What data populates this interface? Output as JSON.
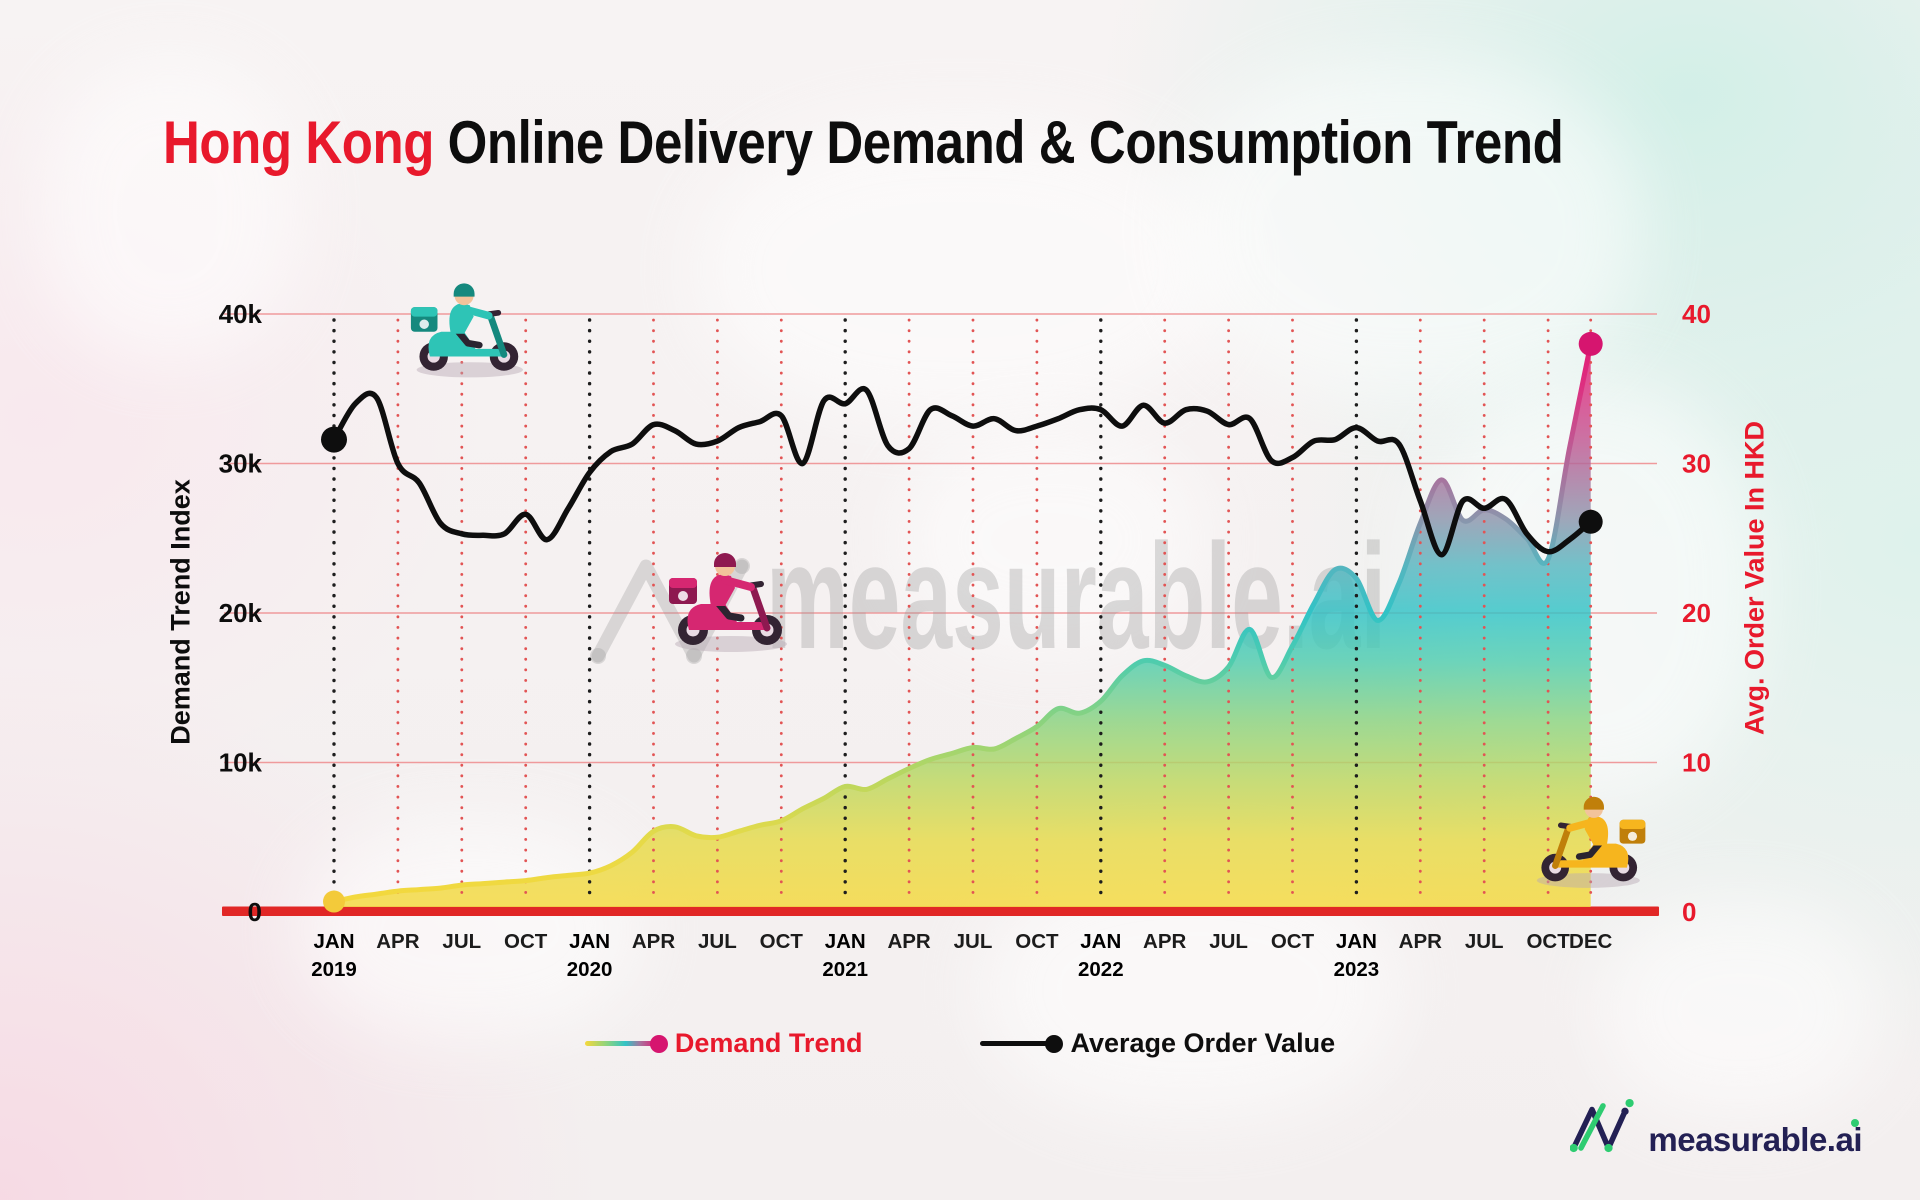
{
  "title": {
    "highlight": "Hong Kong",
    "rest": "Online Delivery Demand & Consumption Trend"
  },
  "watermark": {
    "text": "measurable.ai"
  },
  "brand": {
    "logo_text": "measurable.ai"
  },
  "colors": {
    "accent_red": "#e8192c",
    "baseline_red": "#e12726",
    "grid_red": "#ef9a9c",
    "dotted_red": "#e25454",
    "dotted_black": "#1d1d1d",
    "aov_line": "#0e0e0e",
    "demand_start_dot": "#f3ca3a",
    "demand_end_dot": "#d6156f",
    "brand_navy": "#232054",
    "brand_green": "#2ecc71",
    "watermark_gray": "#9b9b9b"
  },
  "chart_data": {
    "type": "line",
    "title": "Hong Kong Online Delivery Demand & Consumption Trend",
    "x_unit": "month",
    "x_start": "JAN 2019",
    "x_end": "DEC 2023",
    "legend_position": "bottom-center",
    "x_ticks": [
      {
        "m": 0,
        "label": "JAN",
        "year": "2019"
      },
      {
        "m": 3,
        "label": "APR"
      },
      {
        "m": 6,
        "label": "JUL"
      },
      {
        "m": 9,
        "label": "OCT"
      },
      {
        "m": 12,
        "label": "JAN",
        "year": "2020"
      },
      {
        "m": 15,
        "label": "APR"
      },
      {
        "m": 18,
        "label": "JUL"
      },
      {
        "m": 21,
        "label": "OCT"
      },
      {
        "m": 24,
        "label": "JAN",
        "year": "2021"
      },
      {
        "m": 27,
        "label": "APR"
      },
      {
        "m": 30,
        "label": "JUL"
      },
      {
        "m": 33,
        "label": "OCT"
      },
      {
        "m": 36,
        "label": "JAN",
        "year": "2022"
      },
      {
        "m": 39,
        "label": "APR"
      },
      {
        "m": 42,
        "label": "JUL"
      },
      {
        "m": 45,
        "label": "OCT"
      },
      {
        "m": 48,
        "label": "JAN",
        "year": "2023"
      },
      {
        "m": 51,
        "label": "APR"
      },
      {
        "m": 54,
        "label": "JUL"
      },
      {
        "m": 57,
        "label": "OCT"
      },
      {
        "m": 59,
        "label": "DEC"
      }
    ],
    "y_left": {
      "label": "Demand Trend Index",
      "min": 0,
      "max": 40000,
      "ticks": [
        {
          "v": 0,
          "label": "0"
        },
        {
          "v": 10000,
          "label": "10k"
        },
        {
          "v": 20000,
          "label": "20k"
        },
        {
          "v": 30000,
          "label": "30k"
        },
        {
          "v": 40000,
          "label": "40k"
        }
      ]
    },
    "y_right": {
      "label": "Avg. Order Value In HKD",
      "min": 0,
      "max": 40,
      "ticks": [
        {
          "v": 0,
          "label": "0"
        },
        {
          "v": 10,
          "label": "10"
        },
        {
          "v": 20,
          "label": "20"
        },
        {
          "v": 30,
          "label": "30"
        },
        {
          "v": 40,
          "label": "40"
        }
      ]
    },
    "grid": {
      "h_values": [
        10000,
        20000,
        30000,
        40000
      ],
      "v_lines": "quarterly dotted: black at JAN, red at APR/JUL/OCT and DEC 2023"
    },
    "gradient_stops": [
      [
        0,
        "#f6d83b"
      ],
      [
        0.12,
        "#e6da48"
      ],
      [
        0.22,
        "#bcd75e"
      ],
      [
        0.32,
        "#8ad37f"
      ],
      [
        0.42,
        "#4eccae"
      ],
      [
        0.5,
        "#31c3c6"
      ],
      [
        0.58,
        "#56b5bf"
      ],
      [
        0.66,
        "#8d93ab"
      ],
      [
        0.73,
        "#aa719d"
      ],
      [
        0.79,
        "#c25591"
      ],
      [
        0.88,
        "#dd2f80"
      ],
      [
        1,
        "#e60e6c"
      ]
    ],
    "series": [
      {
        "name": "Demand Trend",
        "axis": "left",
        "style": "gradient area, yellow at low values through teal to magenta at high values",
        "start_dot_color": "#f3ca3a",
        "end_dot_color": "#d6156f",
        "values": [
          700,
          1000,
          1200,
          1400,
          1500,
          1600,
          1800,
          1900,
          2000,
          2100,
          2300,
          2450,
          2600,
          3100,
          4000,
          5400,
          5700,
          5100,
          5000,
          5400,
          5800,
          6100,
          6900,
          7600,
          8400,
          8200,
          8900,
          9600,
          10200,
          10600,
          11000,
          10900,
          11600,
          12400,
          13600,
          13300,
          14100,
          15800,
          16800,
          16500,
          15800,
          15400,
          16400,
          18900,
          15700,
          17800,
          20600,
          22900,
          22300,
          19500,
          22000,
          26000,
          28900,
          26200,
          26900,
          26300,
          25000,
          23600,
          31000,
          38000
        ]
      },
      {
        "name": "Average Order Value",
        "axis": "right",
        "color": "#0e0e0e",
        "values": [
          31.6,
          34.0,
          34.4,
          30.0,
          28.7,
          26.0,
          25.3,
          25.2,
          25.3,
          26.6,
          24.9,
          27.0,
          29.4,
          30.8,
          31.3,
          32.6,
          32.2,
          31.3,
          31.5,
          32.4,
          32.8,
          33.2,
          30.0,
          34.2,
          34.0,
          34.9,
          31.2,
          31.0,
          33.6,
          33.2,
          32.5,
          33.0,
          32.2,
          32.5,
          33.0,
          33.6,
          33.6,
          32.5,
          33.9,
          32.7,
          33.6,
          33.5,
          32.6,
          33.0,
          30.2,
          30.4,
          31.5,
          31.6,
          32.4,
          31.5,
          31.3,
          27.5,
          23.9,
          27.5,
          27.0,
          27.6,
          25.3,
          24.1,
          24.9,
          26.1
        ]
      }
    ]
  }
}
